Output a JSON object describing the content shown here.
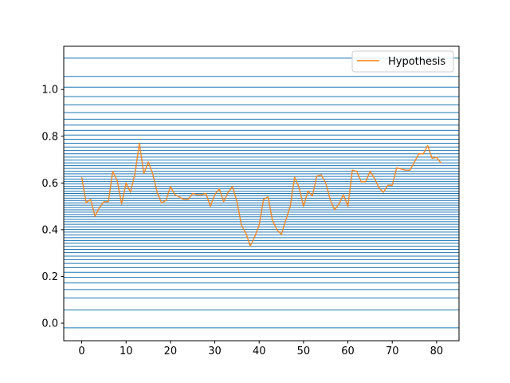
{
  "chart_data": {
    "type": "line",
    "title": "",
    "xlabel": "",
    "ylabel": "",
    "xlim": [
      -4.05,
      85.05
    ],
    "ylim": [
      -0.075,
      1.185
    ],
    "xticks": [
      0,
      10,
      20,
      30,
      40,
      50,
      60,
      70,
      80
    ],
    "yticks": [
      0.0,
      0.2,
      0.4,
      0.6,
      0.8,
      1.0
    ],
    "xtick_labels": [
      "0",
      "10",
      "20",
      "30",
      "40",
      "50",
      "60",
      "70",
      "80"
    ],
    "ytick_labels": [
      "0.0",
      "0.2",
      "0.4",
      "0.6",
      "0.8",
      "1.0"
    ],
    "legend": {
      "position": "top-right",
      "entries": [
        "Hypothesis"
      ]
    },
    "hlines": {
      "color": "#1f77b4",
      "values": [
        -0.02,
        0.057,
        0.108,
        0.144,
        0.172,
        0.196,
        0.218,
        0.238,
        0.256,
        0.272,
        0.287,
        0.302,
        0.316,
        0.329,
        0.342,
        0.354,
        0.366,
        0.378,
        0.39,
        0.401,
        0.412,
        0.423,
        0.434,
        0.444,
        0.455,
        0.465,
        0.475,
        0.485,
        0.495,
        0.505,
        0.515,
        0.525,
        0.535,
        0.545,
        0.555,
        0.565,
        0.575,
        0.585,
        0.596,
        0.606,
        0.617,
        0.628,
        0.639,
        0.65,
        0.662,
        0.674,
        0.686,
        0.698,
        0.711,
        0.725,
        0.739,
        0.754,
        0.77,
        0.787,
        0.805,
        0.825,
        0.848,
        0.873,
        0.901,
        0.934,
        0.97,
        1.01,
        1.056,
        1.134
      ]
    },
    "series": [
      {
        "name": "Hypothesis",
        "color": "#ff7f0e",
        "x": [
          0,
          1,
          2,
          3,
          4,
          5,
          6,
          7,
          8,
          9,
          10,
          11,
          12,
          13,
          14,
          15,
          16,
          17,
          18,
          19,
          20,
          21,
          22,
          23,
          24,
          25,
          26,
          27,
          28,
          29,
          30,
          31,
          32,
          33,
          34,
          35,
          36,
          37,
          38,
          39,
          40,
          41,
          42,
          43,
          44,
          45,
          46,
          47,
          48,
          49,
          50,
          51,
          52,
          53,
          54,
          55,
          56,
          57,
          58,
          59,
          60,
          61,
          62,
          63,
          64,
          65,
          66,
          67,
          68,
          69,
          70,
          71,
          72,
          73,
          74,
          75,
          76,
          77,
          78,
          79,
          80,
          81
        ],
        "values": [
          0.625,
          0.515,
          0.53,
          0.458,
          0.495,
          0.52,
          0.52,
          0.65,
          0.61,
          0.51,
          0.6,
          0.56,
          0.64,
          0.77,
          0.64,
          0.69,
          0.64,
          0.56,
          0.515,
          0.525,
          0.585,
          0.55,
          0.54,
          0.53,
          0.53,
          0.555,
          0.55,
          0.55,
          0.555,
          0.5,
          0.55,
          0.575,
          0.52,
          0.56,
          0.585,
          0.52,
          0.42,
          0.385,
          0.33,
          0.37,
          0.42,
          0.53,
          0.54,
          0.44,
          0.4,
          0.38,
          0.44,
          0.5,
          0.625,
          0.58,
          0.5,
          0.565,
          0.545,
          0.63,
          0.635,
          0.6,
          0.53,
          0.485,
          0.51,
          0.55,
          0.5,
          0.655,
          0.65,
          0.605,
          0.605,
          0.65,
          0.62,
          0.58,
          0.56,
          0.59,
          0.59,
          0.665,
          0.66,
          0.655,
          0.655,
          0.69,
          0.725,
          0.725,
          0.76,
          0.705,
          0.71,
          0.685
        ]
      }
    ]
  }
}
